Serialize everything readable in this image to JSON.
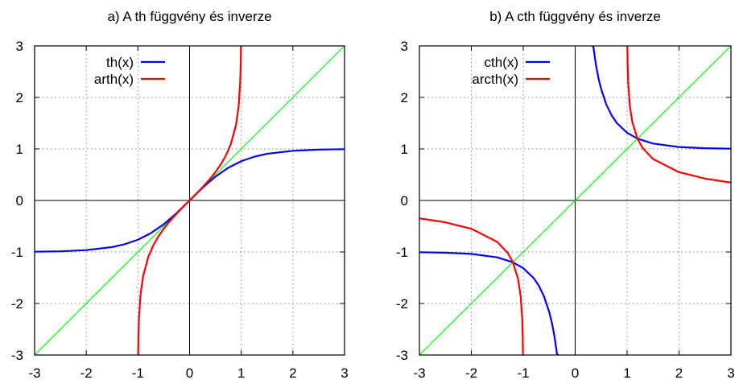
{
  "chart_data": [
    {
      "type": "line",
      "title": "a) A th függvény és inverze",
      "xlabel": "",
      "ylabel": "",
      "xlim": [
        -3,
        3
      ],
      "ylim": [
        -3,
        3
      ],
      "xticks": [
        "-3",
        "-2",
        "-1",
        "0",
        "1",
        "2",
        "3"
      ],
      "yticks": [
        "-3",
        "-2",
        "-1",
        "0",
        "1",
        "2",
        "3"
      ],
      "grid": true,
      "legend_position": "top-left",
      "series": [
        {
          "name": "th(x)",
          "color": "#0000ff",
          "x": [
            -3,
            -2.5,
            -2,
            -1.5,
            -1.25,
            -1,
            -0.75,
            -0.5,
            -0.25,
            0,
            0.25,
            0.5,
            0.75,
            1,
            1.25,
            1.5,
            2,
            2.5,
            3
          ],
          "y": [
            -0.995,
            -0.987,
            -0.964,
            -0.905,
            -0.848,
            -0.762,
            -0.635,
            -0.462,
            -0.245,
            0,
            0.245,
            0.462,
            0.635,
            0.762,
            0.848,
            0.905,
            0.964,
            0.987,
            0.995
          ]
        },
        {
          "name": "arth(x)",
          "color": "#ff0000",
          "x": [
            -0.995,
            -0.99,
            -0.98,
            -0.95,
            -0.9,
            -0.8,
            -0.7,
            -0.6,
            -0.5,
            -0.4,
            -0.3,
            -0.2,
            -0.1,
            0,
            0.1,
            0.2,
            0.3,
            0.4,
            0.5,
            0.6,
            0.7,
            0.8,
            0.9,
            0.95,
            0.98,
            0.99,
            0.995
          ],
          "y": [
            -3.0,
            -2.647,
            -2.298,
            -1.832,
            -1.472,
            -1.099,
            -0.867,
            -0.693,
            -0.549,
            -0.424,
            -0.31,
            -0.203,
            -0.1,
            0,
            0.1,
            0.203,
            0.31,
            0.424,
            0.549,
            0.693,
            0.867,
            1.099,
            1.472,
            1.832,
            2.298,
            2.647,
            3.0
          ]
        },
        {
          "name": "",
          "color": "#00ff00",
          "x": [
            -3,
            3
          ],
          "y": [
            -3,
            3
          ]
        }
      ]
    },
    {
      "type": "line",
      "title": "b) A cth függvény és inverze",
      "xlabel": "",
      "ylabel": "",
      "xlim": [
        -3,
        3
      ],
      "ylim": [
        -3,
        3
      ],
      "xticks": [
        "-3",
        "-2",
        "-1",
        "0",
        "1",
        "2",
        "3"
      ],
      "yticks": [
        "-3",
        "-2",
        "-1",
        "0",
        "1",
        "2",
        "3"
      ],
      "grid": true,
      "legend_position": "top-left",
      "series": [
        {
          "name": "cth(x)",
          "color": "#0000ff",
          "x": [
            -3,
            -2.5,
            -2,
            -1.5,
            -1.2,
            -1,
            -0.8,
            -0.7,
            -0.6,
            -0.5,
            -0.45,
            -0.4,
            -0.35,
            -0.33
          ],
          "y": [
            -1.005,
            -1.014,
            -1.037,
            -1.105,
            -1.2,
            -1.313,
            -1.506,
            -1.655,
            -1.862,
            -2.164,
            -2.367,
            -2.632,
            -2.98,
            -3.0
          ]
        },
        {
          "name": "",
          "color": "#0000ff",
          "x": [
            0.33,
            0.35,
            0.4,
            0.45,
            0.5,
            0.6,
            0.7,
            0.8,
            1,
            1.2,
            1.5,
            2,
            2.5,
            3
          ],
          "y": [
            3.0,
            2.98,
            2.632,
            2.367,
            2.164,
            1.862,
            1.655,
            1.506,
            1.313,
            1.2,
            1.105,
            1.037,
            1.014,
            1.005
          ]
        },
        {
          "name": "arcth(x)",
          "color": "#ff0000",
          "x": [
            -3,
            -2.5,
            -2,
            -1.5,
            -1.3,
            -1.2,
            -1.1,
            -1.05,
            -1.02,
            -1.01,
            -1.005
          ],
          "y": [
            -0.347,
            -0.424,
            -0.549,
            -0.805,
            -1.018,
            -1.199,
            -1.522,
            -1.857,
            -2.308,
            -2.652,
            -3.0
          ]
        },
        {
          "name": "",
          "color": "#ff0000",
          "x": [
            1.005,
            1.01,
            1.02,
            1.05,
            1.1,
            1.2,
            1.3,
            1.5,
            2,
            2.5,
            3
          ],
          "y": [
            3.0,
            2.652,
            2.308,
            1.857,
            1.522,
            1.199,
            1.018,
            0.805,
            0.549,
            0.424,
            0.347
          ]
        },
        {
          "name": "",
          "color": "#00ff00",
          "x": [
            -3,
            3
          ],
          "y": [
            -3,
            3
          ]
        }
      ]
    }
  ]
}
